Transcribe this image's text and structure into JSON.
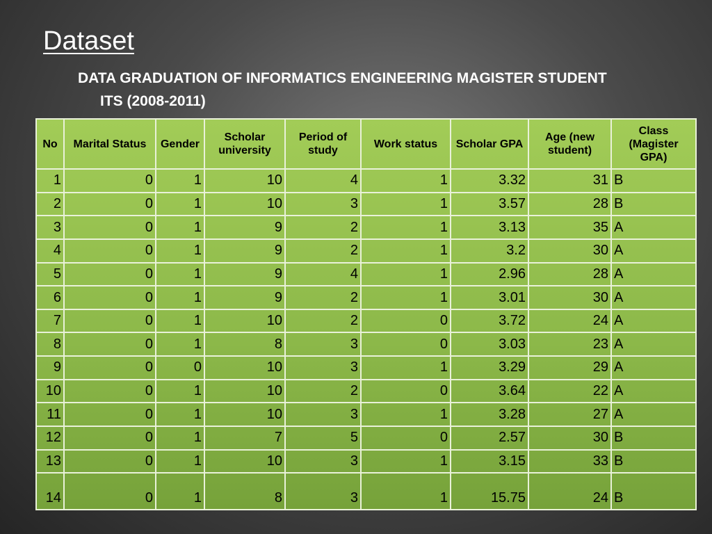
{
  "slide": {
    "title": "Dataset",
    "subtitle_line1": "DATA GRADUATION OF INFORMATICS ENGINEERING MAGISTER STUDENT",
    "subtitle_line2": "ITS  (2008-2011)"
  },
  "table": {
    "headers": [
      "No",
      "Marital Status",
      "Gender",
      "Scholar university",
      "Period of study",
      "Work status",
      "Scholar GPA",
      "Age  (new student)",
      "Class (Magister GPA)"
    ],
    "rows": [
      [
        "1",
        "0",
        "1",
        "10",
        "4",
        "1",
        "3.32",
        "31",
        "B"
      ],
      [
        "2",
        "0",
        "1",
        "10",
        "3",
        "1",
        "3.57",
        "28",
        "B"
      ],
      [
        "3",
        "0",
        "1",
        "9",
        "2",
        "1",
        "3.13",
        "35",
        "A"
      ],
      [
        "4",
        "0",
        "1",
        "9",
        "2",
        "1",
        "3.2",
        "30",
        "A"
      ],
      [
        "5",
        "0",
        "1",
        "9",
        "4",
        "1",
        "2.96",
        "28",
        "A"
      ],
      [
        "6",
        "0",
        "1",
        "9",
        "2",
        "1",
        "3.01",
        "30",
        "A"
      ],
      [
        "7",
        "0",
        "1",
        "10",
        "2",
        "0",
        "3.72",
        "24",
        "A"
      ],
      [
        "8",
        "0",
        "1",
        "8",
        "3",
        "0",
        "3.03",
        "23",
        "A"
      ],
      [
        "9",
        "0",
        "0",
        "10",
        "3",
        "1",
        "3.29",
        "29",
        "A"
      ],
      [
        "10",
        "0",
        "1",
        "10",
        "2",
        "0",
        "3.64",
        "22",
        "A"
      ],
      [
        "11",
        "0",
        "1",
        "10",
        "3",
        "1",
        "3.28",
        "27",
        "A"
      ],
      [
        "12",
        "0",
        "1",
        "7",
        "5",
        "0",
        "2.57",
        "30",
        "B"
      ],
      [
        "13",
        "0",
        "1",
        "10",
        "3",
        "1",
        "3.15",
        "33",
        "B"
      ],
      [
        "14",
        "0",
        "1",
        "8",
        "3",
        "1",
        "15.75",
        "24",
        "B"
      ]
    ]
  },
  "colors": {
    "table_fill": "#8db94a",
    "grid_lines": "#e9f1d9",
    "background": "#4a4a4a"
  }
}
